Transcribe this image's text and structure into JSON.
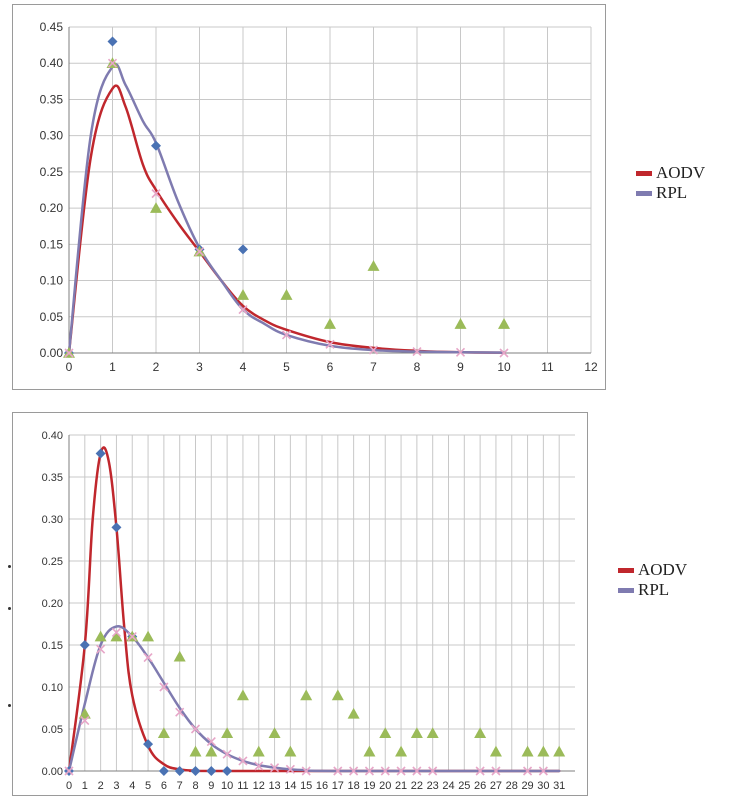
{
  "colors": {
    "aodv": "#c0272d",
    "rpl": "#7f7bb0",
    "diamond": "#4a72b3",
    "triangle": "#9bbb59",
    "cross": "#e7a6c8",
    "grid": "#c8c8c8",
    "axis": "#7f7f7f"
  },
  "legend_1": [
    {
      "label": "AODV",
      "color": "#c0272d"
    },
    {
      "label": "RPL",
      "color": "#7f7bb0"
    }
  ],
  "legend_2": [
    {
      "label": "AODV",
      "color": "#c0272d"
    },
    {
      "label": "RPL",
      "color": "#7f7bb0"
    }
  ],
  "chart_data": [
    {
      "type": "scatter",
      "title": "",
      "xlabel": "",
      "ylabel": "",
      "xlim": [
        0,
        12
      ],
      "ylim": [
        0,
        0.45
      ],
      "x_ticks": [
        "0",
        "1",
        "2",
        "3",
        "4",
        "5",
        "6",
        "7",
        "8",
        "9",
        "10",
        "11",
        "12"
      ],
      "y_ticks": [
        "0.00",
        "0.05",
        "0.10",
        "0.15",
        "0.20",
        "0.25",
        "0.30",
        "0.35",
        "0.40",
        "0.45"
      ],
      "grid": true,
      "legend_position": "right",
      "series": [
        {
          "name": "AODV",
          "kind": "line",
          "points": [
            [
              0,
              0
            ],
            [
              0.5,
              0.27
            ],
            [
              1,
              0.365
            ],
            [
              1.3,
              0.34
            ],
            [
              1.7,
              0.26
            ],
            [
              2,
              0.225
            ],
            [
              2.5,
              0.18
            ],
            [
              3,
              0.14
            ],
            [
              3.5,
              0.1
            ],
            [
              4,
              0.065
            ],
            [
              4.5,
              0.045
            ],
            [
              5,
              0.032
            ],
            [
              6,
              0.015
            ],
            [
              7,
              0.007
            ],
            [
              8,
              0.003
            ],
            [
              9,
              0.001
            ],
            [
              10,
              0.0005
            ]
          ]
        },
        {
          "name": "RPL",
          "kind": "line",
          "points": [
            [
              0,
              0
            ],
            [
              0.5,
              0.3
            ],
            [
              1,
              0.395
            ],
            [
              1.3,
              0.37
            ],
            [
              1.7,
              0.32
            ],
            [
              2,
              0.29
            ],
            [
              2.5,
              0.21
            ],
            [
              3,
              0.145
            ],
            [
              3.5,
              0.1
            ],
            [
              4,
              0.06
            ],
            [
              4.5,
              0.04
            ],
            [
              5,
              0.025
            ],
            [
              6,
              0.01
            ],
            [
              7,
              0.004
            ],
            [
              8,
              0.002
            ],
            [
              9,
              0.001
            ],
            [
              10,
              0.0005
            ]
          ]
        },
        {
          "kind": "diamond",
          "points": [
            [
              0,
              0
            ],
            [
              1,
              0.43
            ],
            [
              2,
              0.286
            ],
            [
              3,
              0.143
            ],
            [
              4,
              0.143
            ]
          ]
        },
        {
          "kind": "triangle",
          "points": [
            [
              0,
              0
            ],
            [
              1,
              0.4
            ],
            [
              2,
              0.2
            ],
            [
              3,
              0.14
            ],
            [
              4,
              0.08
            ],
            [
              5,
              0.08
            ],
            [
              6,
              0.04
            ],
            [
              7,
              0.12
            ],
            [
              9,
              0.04
            ],
            [
              10,
              0.04
            ]
          ]
        },
        {
          "kind": "cross",
          "points": [
            [
              0,
              0
            ],
            [
              1,
              0.4
            ],
            [
              2,
              0.22
            ],
            [
              3,
              0.14
            ],
            [
              4,
              0.06
            ],
            [
              5,
              0.025
            ],
            [
              6,
              0.012
            ],
            [
              7,
              0.004
            ],
            [
              8,
              0.002
            ],
            [
              9,
              0.001
            ],
            [
              10,
              0
            ]
          ]
        }
      ]
    },
    {
      "type": "scatter",
      "title": "",
      "xlabel": "",
      "ylabel": "",
      "xlim": [
        0,
        32
      ],
      "ylim": [
        0,
        0.4
      ],
      "x_ticks": [
        "0",
        "1",
        "2",
        "3",
        "4",
        "5",
        "6",
        "7",
        "8",
        "9",
        "10",
        "11",
        "12",
        "13",
        "14",
        "15",
        "16",
        "17",
        "18",
        "19",
        "20",
        "21",
        "22",
        "23",
        "24",
        "25",
        "26",
        "27",
        "28",
        "29",
        "30",
        "31"
      ],
      "y_ticks": [
        "0.00",
        "0.05",
        "0.10",
        "0.15",
        "0.20",
        "0.25",
        "0.30",
        "0.35",
        "0.40"
      ],
      "grid": true,
      "legend_position": "right",
      "series": [
        {
          "name": "AODV",
          "kind": "line",
          "points": [
            [
              0,
              0
            ],
            [
              1,
              0.15
            ],
            [
              1.5,
              0.3
            ],
            [
              2,
              0.378
            ],
            [
              2.5,
              0.37
            ],
            [
              3,
              0.29
            ],
            [
              3.5,
              0.17
            ],
            [
              4,
              0.09
            ],
            [
              5,
              0.03
            ],
            [
              6,
              0.008
            ],
            [
              7,
              0.002
            ],
            [
              8,
              0.0005
            ],
            [
              10,
              0
            ],
            [
              31,
              0
            ]
          ]
        },
        {
          "name": "RPL",
          "kind": "line",
          "points": [
            [
              0,
              0
            ],
            [
              1,
              0.08
            ],
            [
              2,
              0.15
            ],
            [
              3,
              0.172
            ],
            [
              4,
              0.16
            ],
            [
              5,
              0.135
            ],
            [
              6,
              0.105
            ],
            [
              7,
              0.075
            ],
            [
              8,
              0.05
            ],
            [
              9,
              0.032
            ],
            [
              10,
              0.02
            ],
            [
              11,
              0.012
            ],
            [
              12,
              0.007
            ],
            [
              13,
              0.004
            ],
            [
              14,
              0.002
            ],
            [
              15,
              0.001
            ],
            [
              17,
              0
            ],
            [
              31,
              0
            ]
          ]
        },
        {
          "kind": "diamond",
          "points": [
            [
              0,
              0
            ],
            [
              1,
              0.15
            ],
            [
              2,
              0.378
            ],
            [
              3,
              0.29
            ],
            [
              4,
              0.16
            ],
            [
              5,
              0.032
            ],
            [
              6,
              0
            ],
            [
              7,
              0
            ],
            [
              8,
              0
            ],
            [
              9,
              0
            ],
            [
              10,
              0
            ]
          ]
        },
        {
          "kind": "triangle",
          "points": [
            [
              1,
              0.068
            ],
            [
              2,
              0.16
            ],
            [
              3,
              0.16
            ],
            [
              4,
              0.16
            ],
            [
              5,
              0.16
            ],
            [
              6,
              0.045
            ],
            [
              7,
              0.136
            ],
            [
              8,
              0.023
            ],
            [
              9,
              0.023
            ],
            [
              10,
              0.045
            ],
            [
              11,
              0.09
            ],
            [
              12,
              0.023
            ],
            [
              13,
              0.045
            ],
            [
              14,
              0.023
            ],
            [
              15,
              0.09
            ],
            [
              17,
              0.09
            ],
            [
              18,
              0.068
            ],
            [
              19,
              0.023
            ],
            [
              20,
              0.045
            ],
            [
              21,
              0.023
            ],
            [
              22,
              0.045
            ],
            [
              23,
              0.045
            ],
            [
              26,
              0.045
            ],
            [
              27,
              0.023
            ],
            [
              29,
              0.023
            ],
            [
              30,
              0.023
            ],
            [
              31,
              0.023
            ]
          ]
        },
        {
          "kind": "cross",
          "points": [
            [
              0,
              0
            ],
            [
              1,
              0.06
            ],
            [
              2,
              0.145
            ],
            [
              3,
              0.165
            ],
            [
              4,
              0.16
            ],
            [
              5,
              0.135
            ],
            [
              6,
              0.1
            ],
            [
              7,
              0.07
            ],
            [
              8,
              0.05
            ],
            [
              9,
              0.035
            ],
            [
              10,
              0.02
            ],
            [
              11,
              0.012
            ],
            [
              12,
              0.006
            ],
            [
              13,
              0.004
            ],
            [
              14,
              0.002
            ],
            [
              15,
              0
            ],
            [
              17,
              0
            ],
            [
              18,
              0
            ],
            [
              19,
              0
            ],
            [
              20,
              0
            ],
            [
              21,
              0
            ],
            [
              22,
              0
            ],
            [
              23,
              0
            ],
            [
              26,
              0
            ],
            [
              27,
              0
            ],
            [
              29,
              0
            ],
            [
              30,
              0
            ]
          ]
        }
      ]
    }
  ]
}
